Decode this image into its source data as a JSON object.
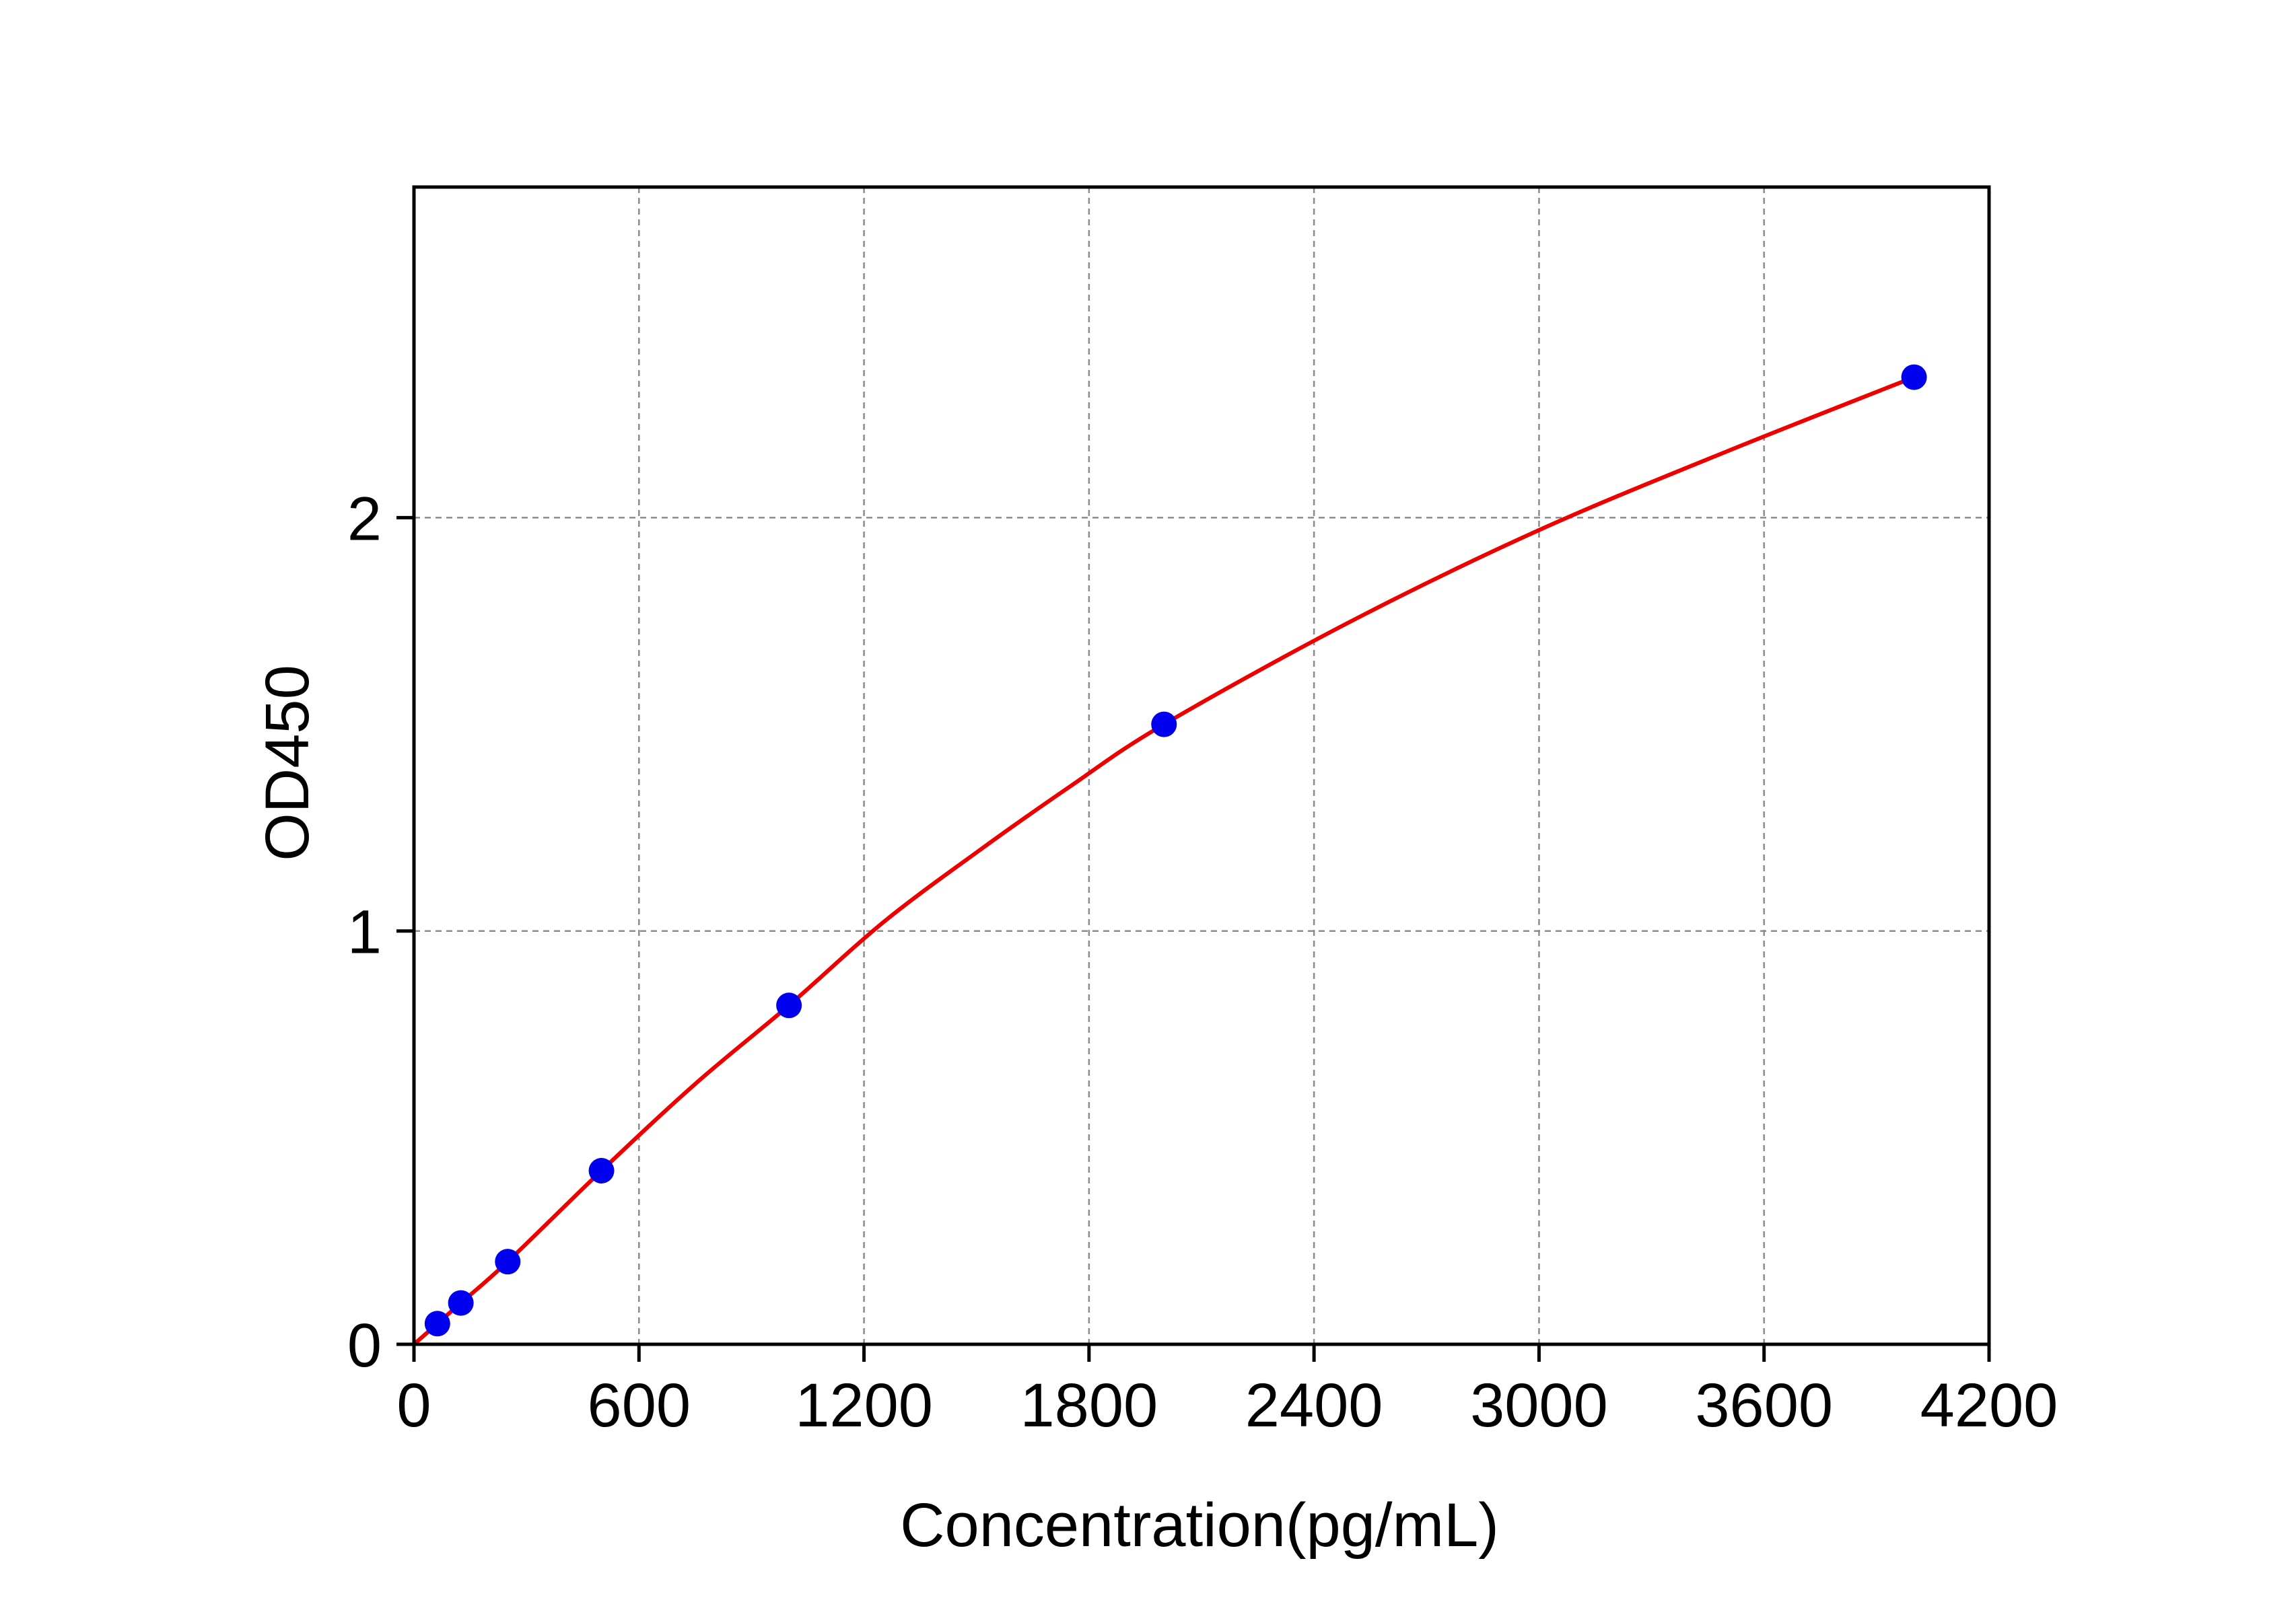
{
  "chart_data": {
    "type": "scatter",
    "title": "",
    "xlabel": "Concentration(pg/mL)",
    "ylabel": "OD450",
    "xlim": [
      0,
      4200
    ],
    "ylim": [
      0,
      2.8
    ],
    "x_ticks": [
      0,
      600,
      1200,
      1800,
      2400,
      3000,
      3600,
      4200
    ],
    "x_tick_labels": [
      "0",
      "600",
      "1200",
      "1800",
      "2400",
      "3000",
      "3600",
      "4200"
    ],
    "y_ticks": [
      0,
      1,
      2
    ],
    "y_tick_labels": [
      "0",
      "1",
      "2"
    ],
    "grid": true,
    "grid_style": "dashed",
    "legend": false,
    "series": [
      {
        "kind": "points",
        "color": "#0000ee",
        "x": [
          62.5,
          125,
          250,
          500,
          1000,
          2000,
          4000
        ],
        "y": [
          0.05,
          0.1,
          0.2,
          0.42,
          0.82,
          1.5,
          2.34
        ]
      },
      {
        "kind": "fitted-curve",
        "color": "#ee0000",
        "x": [
          0,
          62.5,
          125,
          250,
          500,
          750,
          1000,
          1250,
          1500,
          1750,
          2000,
          2500,
          3000,
          3500,
          4000
        ],
        "y": [
          0,
          0.05,
          0.1,
          0.2,
          0.42,
          0.63,
          0.82,
          1.02,
          1.19,
          1.35,
          1.5,
          1.75,
          1.97,
          2.16,
          2.34
        ]
      }
    ]
  }
}
